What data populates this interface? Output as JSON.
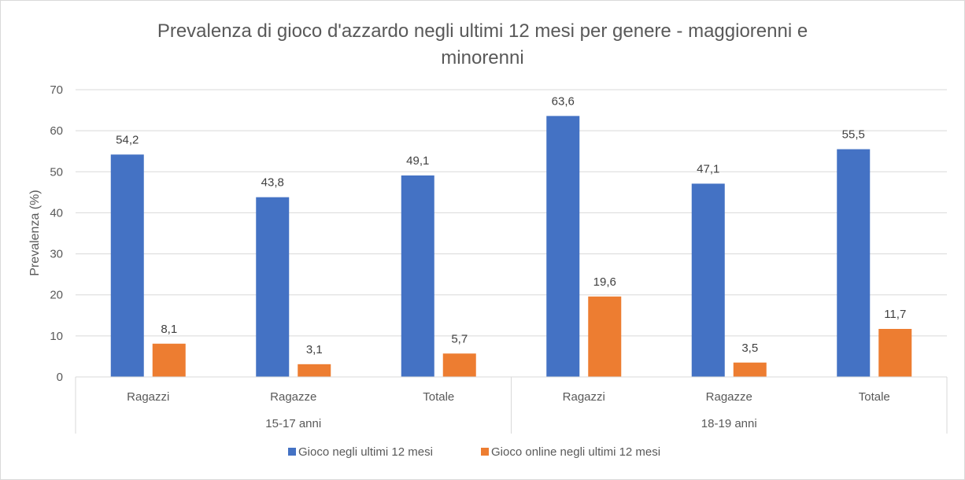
{
  "chart_data": {
    "type": "bar",
    "title_line1": "Prevalenza di gioco d'azzardo negli ultimi 12 mesi per genere - maggiorenni e",
    "title_line2": "minorenni",
    "ylabel": "Prevalenza (%)",
    "xlabel": "",
    "ylim": [
      0,
      70
    ],
    "yticks": [
      0,
      10,
      20,
      30,
      40,
      50,
      60,
      70
    ],
    "grid": true,
    "legend_position": "bottom",
    "groups": [
      {
        "label": "15-17 anni",
        "categories": [
          "Ragazzi",
          "Ragazze",
          "Totale"
        ]
      },
      {
        "label": "18-19 anni",
        "categories": [
          "Ragazzi",
          "Ragazze",
          "Totale"
        ]
      }
    ],
    "series": [
      {
        "name": "Gioco negli ultimi 12 mesi",
        "color": "#4472C4",
        "values": [
          54.2,
          43.8,
          49.1,
          63.6,
          47.1,
          55.5
        ],
        "labels": [
          "54,2",
          "43,8",
          "49,1",
          "63,6",
          "47,1",
          "55,5"
        ]
      },
      {
        "name": "Gioco online negli ultimi 12 mesi",
        "color": "#ED7D31",
        "values": [
          8.1,
          3.1,
          5.7,
          19.6,
          3.5,
          11.7
        ],
        "labels": [
          "8,1",
          "3,1",
          "5,7",
          "19,6",
          "3,5",
          "11,7"
        ]
      }
    ]
  }
}
